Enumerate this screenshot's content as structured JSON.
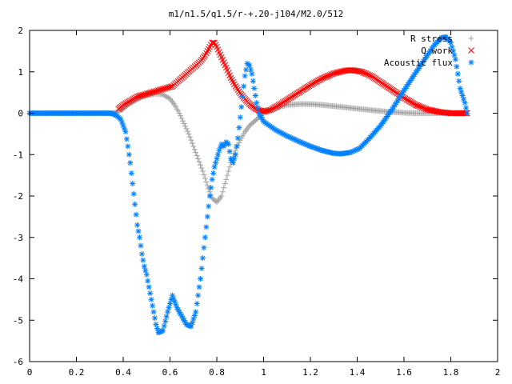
{
  "chart_data": {
    "type": "scatter",
    "title": "m1/n1.5/q1.5/r-+.20-j104/M2.0/512",
    "xlabel": "",
    "ylabel": "",
    "xlim": [
      0,
      2
    ],
    "ylim": [
      -6,
      2
    ],
    "x_ticks": [
      "0",
      "0.2",
      "0.4",
      "0.6",
      "0.8",
      "1",
      "1.2",
      "1.4",
      "1.6",
      "1.8",
      "2"
    ],
    "y_ticks": [
      "2",
      "1",
      "0",
      "-1",
      "-2",
      "-3",
      "-4",
      "-5",
      "-6"
    ],
    "grid": false,
    "legend_position": "top-right",
    "series": [
      {
        "name": "R stress",
        "marker": "+",
        "color": "#a0a0a0",
        "points": [
          [
            0.0,
            0.0
          ],
          [
            0.1,
            0.0
          ],
          [
            0.2,
            0.0
          ],
          [
            0.3,
            0.0
          ],
          [
            0.36,
            0.0
          ],
          [
            0.38,
            0.05
          ],
          [
            0.4,
            0.1
          ],
          [
            0.42,
            0.2
          ],
          [
            0.45,
            0.3
          ],
          [
            0.48,
            0.38
          ],
          [
            0.51,
            0.44
          ],
          [
            0.54,
            0.47
          ],
          [
            0.57,
            0.45
          ],
          [
            0.6,
            0.35
          ],
          [
            0.62,
            0.2
          ],
          [
            0.64,
            0.0
          ],
          [
            0.66,
            -0.25
          ],
          [
            0.68,
            -0.5
          ],
          [
            0.7,
            -0.8
          ],
          [
            0.72,
            -1.1
          ],
          [
            0.74,
            -1.4
          ],
          [
            0.76,
            -1.75
          ],
          [
            0.78,
            -2.05
          ],
          [
            0.8,
            -2.15
          ],
          [
            0.82,
            -2.0
          ],
          [
            0.84,
            -1.6
          ],
          [
            0.86,
            -1.2
          ],
          [
            0.88,
            -0.9
          ],
          [
            0.9,
            -0.65
          ],
          [
            0.92,
            -0.45
          ],
          [
            0.94,
            -0.3
          ],
          [
            0.96,
            -0.2
          ],
          [
            0.98,
            -0.1
          ],
          [
            1.0,
            0.0
          ],
          [
            1.05,
            0.12
          ],
          [
            1.1,
            0.2
          ],
          [
            1.15,
            0.22
          ],
          [
            1.2,
            0.22
          ],
          [
            1.25,
            0.2
          ],
          [
            1.3,
            0.17
          ],
          [
            1.35,
            0.14
          ],
          [
            1.4,
            0.11
          ],
          [
            1.45,
            0.08
          ],
          [
            1.5,
            0.05
          ],
          [
            1.55,
            0.03
          ],
          [
            1.6,
            0.01
          ],
          [
            1.65,
            0.0
          ],
          [
            1.7,
            0.0
          ],
          [
            1.75,
            0.0
          ],
          [
            1.8,
            0.0
          ],
          [
            1.87,
            0.0
          ]
        ]
      },
      {
        "name": "Q work",
        "marker": "x",
        "color": "#ff0000",
        "points": [
          [
            0.38,
            0.1
          ],
          [
            0.4,
            0.2
          ],
          [
            0.43,
            0.3
          ],
          [
            0.46,
            0.4
          ],
          [
            0.49,
            0.45
          ],
          [
            0.52,
            0.5
          ],
          [
            0.55,
            0.55
          ],
          [
            0.58,
            0.6
          ],
          [
            0.61,
            0.65
          ],
          [
            0.64,
            0.8
          ],
          [
            0.67,
            0.95
          ],
          [
            0.7,
            1.1
          ],
          [
            0.73,
            1.25
          ],
          [
            0.75,
            1.4
          ],
          [
            0.77,
            1.6
          ],
          [
            0.78,
            1.7
          ],
          [
            0.79,
            1.7
          ],
          [
            0.8,
            1.6
          ],
          [
            0.82,
            1.35
          ],
          [
            0.84,
            1.1
          ],
          [
            0.86,
            0.85
          ],
          [
            0.88,
            0.65
          ],
          [
            0.9,
            0.48
          ],
          [
            0.92,
            0.34
          ],
          [
            0.94,
            0.22
          ],
          [
            0.96,
            0.13
          ],
          [
            0.98,
            0.07
          ],
          [
            1.0,
            0.04
          ],
          [
            1.03,
            0.08
          ],
          [
            1.06,
            0.18
          ],
          [
            1.1,
            0.32
          ],
          [
            1.15,
            0.5
          ],
          [
            1.2,
            0.68
          ],
          [
            1.25,
            0.84
          ],
          [
            1.3,
            0.96
          ],
          [
            1.35,
            1.03
          ],
          [
            1.38,
            1.04
          ],
          [
            1.42,
            1.0
          ],
          [
            1.46,
            0.9
          ],
          [
            1.5,
            0.75
          ],
          [
            1.55,
            0.56
          ],
          [
            1.6,
            0.37
          ],
          [
            1.65,
            0.2
          ],
          [
            1.7,
            0.09
          ],
          [
            1.75,
            0.03
          ],
          [
            1.8,
            0.0
          ],
          [
            1.87,
            0.0
          ]
        ]
      },
      {
        "name": "Acoustic flux",
        "marker": "*",
        "color": "#0080ff",
        "points": [
          [
            0.0,
            0.0
          ],
          [
            0.05,
            0.0
          ],
          [
            0.1,
            0.0
          ],
          [
            0.15,
            0.0
          ],
          [
            0.2,
            0.0
          ],
          [
            0.25,
            0.0
          ],
          [
            0.3,
            0.0
          ],
          [
            0.35,
            0.0
          ],
          [
            0.37,
            -0.05
          ],
          [
            0.39,
            -0.15
          ],
          [
            0.41,
            -0.45
          ],
          [
            0.42,
            -0.8
          ],
          [
            0.43,
            -1.2
          ],
          [
            0.44,
            -1.7
          ],
          [
            0.45,
            -2.2
          ],
          [
            0.46,
            -2.7
          ],
          [
            0.47,
            -3.0
          ],
          [
            0.48,
            -3.4
          ],
          [
            0.49,
            -3.7
          ],
          [
            0.5,
            -3.9
          ],
          [
            0.51,
            -4.2
          ],
          [
            0.52,
            -4.5
          ],
          [
            0.53,
            -4.8
          ],
          [
            0.54,
            -5.1
          ],
          [
            0.55,
            -5.3
          ],
          [
            0.57,
            -5.25
          ],
          [
            0.59,
            -4.8
          ],
          [
            0.61,
            -4.4
          ],
          [
            0.63,
            -4.7
          ],
          [
            0.65,
            -4.9
          ],
          [
            0.67,
            -5.1
          ],
          [
            0.69,
            -5.15
          ],
          [
            0.71,
            -4.8
          ],
          [
            0.73,
            -4.0
          ],
          [
            0.75,
            -3.0
          ],
          [
            0.77,
            -2.0
          ],
          [
            0.78,
            -1.6
          ],
          [
            0.79,
            -1.3
          ],
          [
            0.8,
            -1.1
          ],
          [
            0.81,
            -0.9
          ],
          [
            0.82,
            -0.75
          ],
          [
            0.83,
            -0.8
          ],
          [
            0.84,
            -0.7
          ],
          [
            0.85,
            -0.75
          ],
          [
            0.86,
            -1.1
          ],
          [
            0.87,
            -1.2
          ],
          [
            0.88,
            -1.0
          ],
          [
            0.89,
            -0.6
          ],
          [
            0.9,
            -0.1
          ],
          [
            0.91,
            0.4
          ],
          [
            0.92,
            0.9
          ],
          [
            0.93,
            1.2
          ],
          [
            0.94,
            1.15
          ],
          [
            0.95,
            0.95
          ],
          [
            0.96,
            0.6
          ],
          [
            0.97,
            0.25
          ],
          [
            0.98,
            0.0
          ],
          [
            1.0,
            -0.2
          ],
          [
            1.05,
            -0.4
          ],
          [
            1.1,
            -0.55
          ],
          [
            1.15,
            -0.68
          ],
          [
            1.2,
            -0.8
          ],
          [
            1.25,
            -0.9
          ],
          [
            1.3,
            -0.97
          ],
          [
            1.33,
            -0.98
          ],
          [
            1.37,
            -0.95
          ],
          [
            1.41,
            -0.85
          ],
          [
            1.45,
            -0.62
          ],
          [
            1.5,
            -0.3
          ],
          [
            1.55,
            0.1
          ],
          [
            1.6,
            0.55
          ],
          [
            1.65,
            0.98
          ],
          [
            1.7,
            1.4
          ],
          [
            1.73,
            1.65
          ],
          [
            1.76,
            1.82
          ],
          [
            1.78,
            1.84
          ],
          [
            1.8,
            1.7
          ],
          [
            1.82,
            1.3
          ],
          [
            1.84,
            0.6
          ],
          [
            1.86,
            0.25
          ],
          [
            1.87,
            0.0
          ]
        ]
      }
    ]
  }
}
